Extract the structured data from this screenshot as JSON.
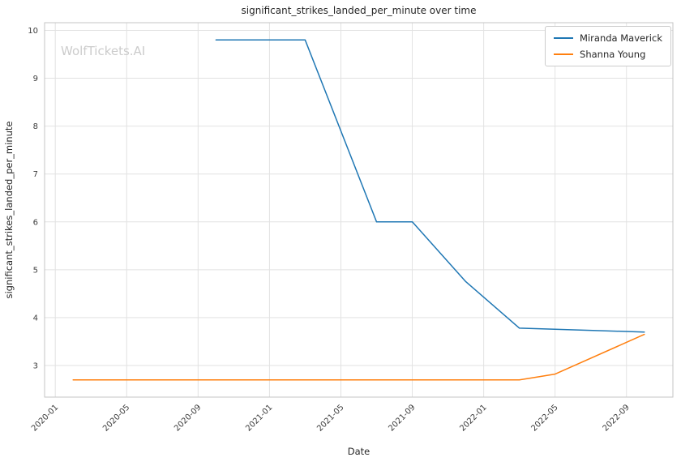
{
  "watermark": "WolfTickets.AI",
  "colors": {
    "background": "#ffffff",
    "grid": "#e2e2e2",
    "spine": "#c4c4c4",
    "tick_label": "#3d3d3d",
    "text": "#262626",
    "watermark": "#cccccc",
    "legend_border": "#cccccc",
    "series_blue": "#1f77b4",
    "series_orange": "#ff7f0e"
  },
  "chart_data": {
    "type": "line",
    "title": "significant_strikes_landed_per_minute over time",
    "xlabel": "Date",
    "ylabel": "significant_strikes_landed_per_minute",
    "x_ticks": [
      "2020-01",
      "2020-05",
      "2020-09",
      "2021-01",
      "2021-05",
      "2021-09",
      "2022-01",
      "2022-05",
      "2022-09"
    ],
    "y_ticks": [
      3,
      4,
      5,
      6,
      7,
      8,
      9,
      10
    ],
    "xlim_months_from_2020_01": [
      -0.6,
      34.6
    ],
    "ylim": [
      2.34,
      10.16
    ],
    "grid": true,
    "legend_position": "upper right",
    "series": [
      {
        "name": "Miranda Maverick",
        "color": "#1f77b4",
        "points": [
          [
            "2020-10",
            9.8
          ],
          [
            "2021-03",
            9.8
          ],
          [
            "2021-07",
            6.0
          ],
          [
            "2021-09",
            6.0
          ],
          [
            "2021-12",
            4.75
          ],
          [
            "2022-03",
            3.78
          ],
          [
            "2022-10",
            3.7
          ]
        ]
      },
      {
        "name": "Shanna Young",
        "color": "#ff7f0e",
        "points": [
          [
            "2020-02",
            2.7
          ],
          [
            "2022-03",
            2.7
          ],
          [
            "2022-05",
            2.82
          ],
          [
            "2022-10",
            3.65
          ]
        ]
      }
    ]
  }
}
